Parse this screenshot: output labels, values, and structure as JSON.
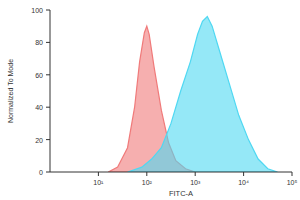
{
  "chart_data": {
    "type": "area",
    "x_label": "FITC-A",
    "y_label": "Normalized To Mode",
    "log": "x",
    "xlim": [
      1,
      100000
    ],
    "xticks": [
      {
        "value": 10,
        "label": "10¹"
      },
      {
        "value": 100,
        "label": "10²"
      },
      {
        "value": 1000,
        "label": "10³"
      },
      {
        "value": 10000,
        "label": "10⁴"
      },
      {
        "value": 100000,
        "label": "10⁵"
      }
    ],
    "ylim": [
      0,
      100
    ],
    "yticks": [
      0,
      20,
      40,
      60,
      80,
      100
    ],
    "grid": false,
    "series": [
      {
        "color": "#f07a7a",
        "x": [
          16,
          25,
          40,
          56,
          71,
          89,
          100,
          112,
          141,
          200,
          282,
          398,
          631,
          1000
        ],
        "values": [
          0,
          3,
          15,
          40,
          68,
          86,
          90,
          85,
          65,
          38,
          18,
          7,
          2,
          0
        ]
      },
      {
        "color": "#4fd8f2",
        "x": [
          40,
          79,
          126,
          200,
          316,
          501,
          794,
          1122,
          1413,
          1778,
          2239,
          3162,
          5012,
          7943,
          12589,
          19953,
          31623,
          50119
        ],
        "values": [
          0,
          3,
          8,
          15,
          30,
          50,
          68,
          85,
          93,
          96,
          90,
          75,
          55,
          35,
          20,
          8,
          2,
          0
        ]
      }
    ]
  }
}
